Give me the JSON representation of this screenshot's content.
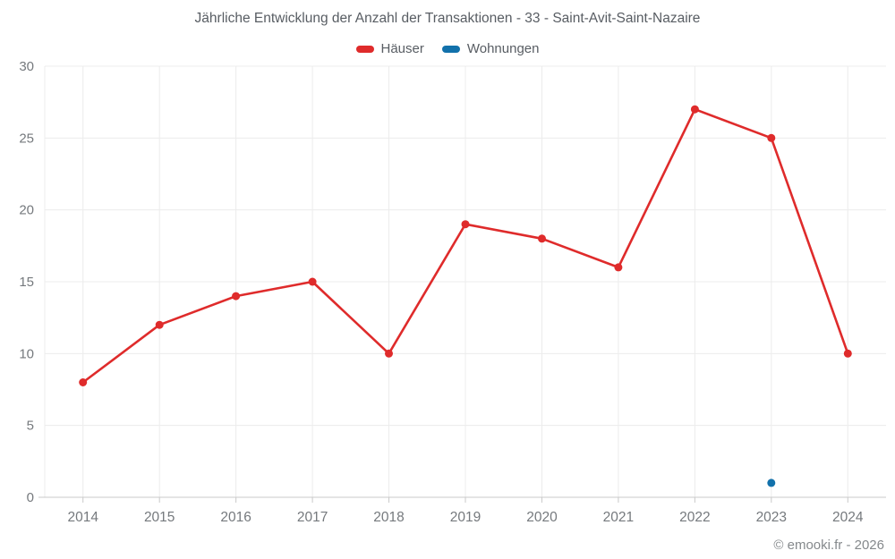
{
  "title": "Jährliche Entwicklung der Anzahl der Transaktionen - 33 - Saint-Avit-Saint-Nazaire",
  "legend": [
    {
      "label": "Häuser",
      "color": "#df2b2b"
    },
    {
      "label": "Wohnungen",
      "color": "#1271ab"
    }
  ],
  "watermark": "© emooki.fr - 2026",
  "colors": {
    "grid": "#ececec",
    "axis": "#c9c9c9",
    "tick_label": "#75797d",
    "title": "#585d63",
    "watermark": "#85898c",
    "background": "#ffffff"
  },
  "chart_data": {
    "type": "line",
    "title": "Jährliche Entwicklung der Anzahl der Transaktionen - 33 - Saint-Avit-Saint-Nazaire",
    "categories": [
      "2014",
      "2015",
      "2016",
      "2017",
      "2018",
      "2019",
      "2020",
      "2021",
      "2022",
      "2023",
      "2024"
    ],
    "series": [
      {
        "name": "Häuser",
        "color": "#df2b2b",
        "values": [
          8,
          12,
          14,
          15,
          10,
          19,
          18,
          16,
          27,
          25,
          10
        ]
      },
      {
        "name": "Wohnungen",
        "color": "#1271ab",
        "values": [
          null,
          null,
          null,
          null,
          null,
          null,
          null,
          null,
          null,
          1,
          null
        ]
      }
    ],
    "xlabel": "",
    "ylabel": "",
    "ylim": [
      0,
      30
    ],
    "yticks": [
      0,
      5,
      10,
      15,
      20,
      25,
      30
    ],
    "grid": true,
    "legend_position": "top"
  }
}
